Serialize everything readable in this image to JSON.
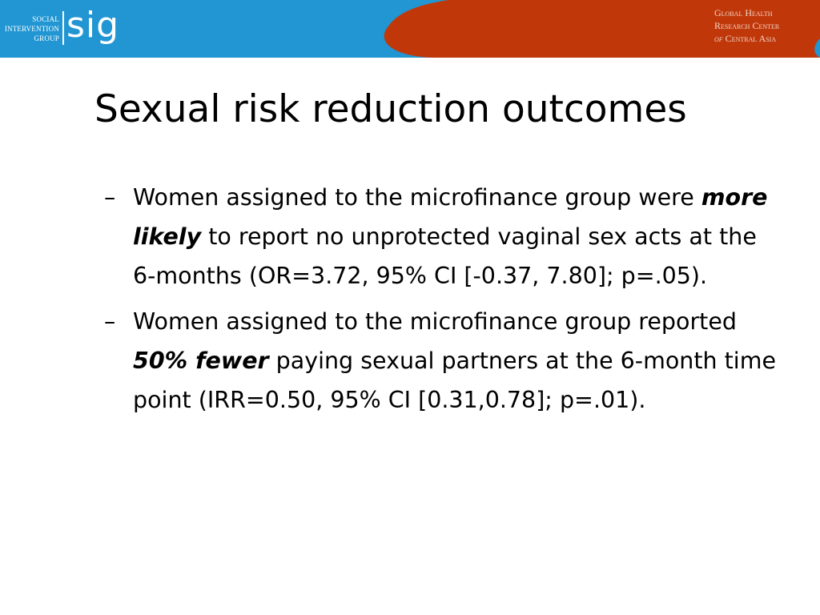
{
  "header": {
    "left_logo": {
      "line1": "SOCIAL",
      "line2": "INTERVENTION",
      "line3": "GROUP",
      "mark": "sig"
    },
    "right_logo": {
      "line1": "Global Health",
      "line2": "Research Center",
      "line3_prefix": "of",
      "line3_rest": "Central Asia"
    },
    "colors": {
      "blue": "#2196d3",
      "orange": "#c0380a"
    }
  },
  "slide": {
    "title": "Sexual risk reduction outcomes",
    "bullets": [
      {
        "dash": "–",
        "pre": "Women assigned to the microfinance group were ",
        "emph": "more likely",
        "post": " to report no unprotected vaginal sex acts at the 6-months (OR=3.72, 95% CI [-0.37, 7.80]; p=.05)."
      },
      {
        "dash": "–",
        "pre": "Women assigned to the microfinance group reported ",
        "emph": "50% fewer",
        "post": " paying sexual partners at the 6-month time point (IRR=0.50, 95% CI [0.31,0.78]; p=.01)."
      }
    ]
  }
}
